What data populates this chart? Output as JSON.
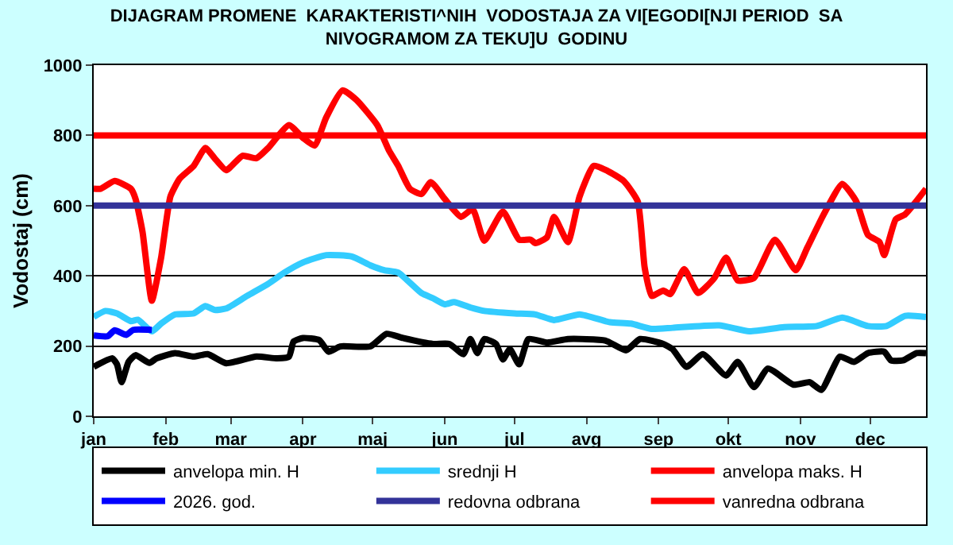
{
  "chart_data": {
    "type": "line",
    "title": "DIJAGRAM PROMENE  KARAKTERISTI^NIH  VODOSTAJA ZA VI[EGODI[NJI PERIOD  SA\nNIVOGRAMOM ZA TEKU]U  GODINU",
    "ylabel": "Vodostaj (cm)",
    "xlim": [
      "--01-01",
      "--12-25"
    ],
    "xticks": [
      {
        "value": "--01-01",
        "label": "jan"
      },
      {
        "value": "--02-01",
        "label": "feb"
      },
      {
        "value": "--03-01",
        "label": "mar"
      },
      {
        "value": "--04-01",
        "label": "apr"
      },
      {
        "value": "--05-01",
        "label": "maj"
      },
      {
        "value": "--06-01",
        "label": "jun"
      },
      {
        "value": "--07-01",
        "label": "jul"
      },
      {
        "value": "--08-01",
        "label": "avg"
      },
      {
        "value": "--09-01",
        "label": "sep"
      },
      {
        "value": "--10-01",
        "label": "okt"
      },
      {
        "value": "--11-01",
        "label": "nov"
      },
      {
        "value": "--12-01",
        "label": "dec"
      }
    ],
    "ylim": [
      0,
      1000
    ],
    "yticks": [
      0,
      200,
      400,
      600,
      800,
      1000
    ],
    "grid": "y",
    "legend": "bottom",
    "marker": "none",
    "line_style": "solid",
    "series": [
      {
        "name": "anvelopa min. H",
        "color": "#000000",
        "x": [
          "--01-01",
          "--01-09",
          "--01-11",
          "--01-13",
          "--01-16",
          "--01-19",
          "--01-25",
          "--01-28",
          "--02-05",
          "--02-13",
          "--02-19",
          "--02-27",
          "--03-12",
          "--03-21",
          "--03-26",
          "--03-28",
          "--04-01",
          "--04-08",
          "--04-12",
          "--04-17",
          "--04-30",
          "--05-07",
          "--05-14",
          "--05-27",
          "--06-03",
          "--06-09",
          "--06-12",
          "--06-15",
          "--06-18",
          "--06-23",
          "--06-26",
          "--06-29",
          "--07-03",
          "--07-07",
          "--07-15",
          "--07-24",
          "--08-09",
          "--08-18",
          "--08-24",
          "--09-03",
          "--09-07",
          "--09-13",
          "--09-20",
          "--09-30",
          "--10-05",
          "--10-12",
          "--10-18",
          "--10-29",
          "--11-05",
          "--11-10",
          "--11-18",
          "--11-24",
          "--11-30",
          "--12-07",
          "--12-10",
          "--12-15",
          "--12-21",
          "--12-25"
        ],
        "values": [
          141,
          165,
          148,
          97,
          155,
          174,
          152,
          165,
          180,
          170,
          177,
          151,
          170,
          165,
          170,
          213,
          223,
          217,
          184,
          199,
          199,
          235,
          223,
          206,
          206,
          177,
          220,
          180,
          220,
          206,
          162,
          191,
          148,
          220,
          210,
          220,
          216,
          188,
          220,
          206,
          191,
          141,
          177,
          116,
          155,
          83,
          136,
          90,
          97,
          75,
          170,
          155,
          180,
          184,
          159,
          159,
          180,
          180
        ]
      },
      {
        "name": "srednji H",
        "color": "#33ccff",
        "x": [
          "--01-01",
          "--01-06",
          "--01-11",
          "--01-17",
          "--01-20",
          "--01-26",
          "--01-30",
          "--02-05",
          "--02-13",
          "--02-18",
          "--02-22",
          "--02-27",
          "--03-08",
          "--03-17",
          "--03-24",
          "--04-01",
          "--04-11",
          "--04-22",
          "--04-30",
          "--05-06",
          "--05-12",
          "--05-22",
          "--05-27",
          "--06-01",
          "--06-05",
          "--06-12",
          "--06-18",
          "--07-01",
          "--07-10",
          "--07-18",
          "--07-29",
          "--08-11",
          "--08-20",
          "--08-29",
          "--09-07",
          "--09-27",
          "--10-10",
          "--10-25",
          "--11-08",
          "--11-19",
          "--11-30",
          "--12-08",
          "--12-16",
          "--12-25"
        ],
        "values": [
          283,
          300,
          293,
          271,
          275,
          242,
          264,
          290,
          293,
          314,
          303,
          307,
          343,
          377,
          409,
          438,
          459,
          455,
          430,
          416,
          409,
          351,
          336,
          319,
          325,
          310,
          300,
          293,
          290,
          274,
          290,
          268,
          264,
          249,
          252,
          259,
          242,
          254,
          257,
          281,
          257,
          257,
          286,
          283
        ]
      },
      {
        "name": "anvelopa maks. H",
        "color": "#ff0000",
        "x": [
          "--01-01",
          "--01-04",
          "--01-10",
          "--01-17",
          "--01-19",
          "--01-22",
          "--01-26",
          "--01-30",
          "--02-03",
          "--02-07",
          "--02-13",
          "--02-18",
          "--02-22",
          "--02-27",
          "--03-06",
          "--03-12",
          "--03-17",
          "--03-26",
          "--04-01",
          "--04-06",
          "--04-11",
          "--04-18",
          "--04-24",
          "--05-03",
          "--05-08",
          "--05-12",
          "--05-17",
          "--05-22",
          "--05-26",
          "--06-01",
          "--06-08",
          "--06-13",
          "--06-18",
          "--06-26",
          "--07-03",
          "--07-08",
          "--07-10",
          "--07-15",
          "--07-18",
          "--07-24",
          "--07-29",
          "--08-04",
          "--08-10",
          "--08-17",
          "--08-23",
          "--08-26",
          "--08-29",
          "--09-03",
          "--09-06",
          "--09-12",
          "--09-18",
          "--09-25",
          "--09-30",
          "--10-05",
          "--10-12",
          "--10-21",
          "--10-30",
          "--11-04",
          "--11-11",
          "--11-19",
          "--11-25",
          "--11-30",
          "--12-05",
          "--12-07",
          "--12-12",
          "--12-16",
          "--12-25"
        ],
        "values": [
          648,
          648,
          670,
          648,
          619,
          525,
          329,
          452,
          626,
          677,
          713,
          764,
          735,
          701,
          742,
          735,
          764,
          829,
          793,
          771,
          851,
          928,
          901,
          829,
          757,
          713,
          648,
          633,
          667,
          619,
          568,
          590,
          500,
          583,
          503,
          503,
          493,
          510,
          568,
          496,
          626,
          713,
          699,
          670,
          612,
          423,
          343,
          358,
          348,
          419,
          351,
          394,
          452,
          387,
          394,
          503,
          416,
          481,
          575,
          662,
          612,
          517,
          496,
          459,
          561,
          575,
          648
        ]
      },
      {
        "name": "2026. god.",
        "color": "#0000ff",
        "x": [
          "--01-01",
          "--01-07",
          "--01-10",
          "--01-15",
          "--01-18",
          "--01-26"
        ],
        "values": [
          230,
          228,
          245,
          232,
          246,
          246
        ]
      }
    ],
    "ref_lines": [
      {
        "axis": "y",
        "value": 600,
        "label": "redovna odbrana",
        "color": "#333399"
      },
      {
        "axis": "y",
        "value": 800,
        "label": "vanredna odbrana",
        "color": "#ff0000"
      }
    ]
  }
}
